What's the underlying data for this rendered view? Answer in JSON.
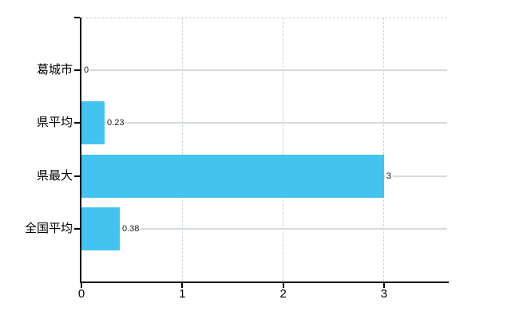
{
  "chart_data": {
    "type": "bar",
    "orientation": "horizontal",
    "title": "",
    "xlabel": "",
    "ylabel": "",
    "categories": [
      "葛城市",
      "県平均",
      "県最大",
      "全国平均"
    ],
    "values": [
      0,
      0.23,
      3,
      0.38
    ],
    "value_labels": [
      "0",
      "0.23",
      "3",
      "0.38"
    ],
    "x_ticks": [
      0,
      1,
      2,
      3
    ],
    "x_tick_labels": [
      "0",
      "1",
      "2",
      "3"
    ],
    "xlim": [
      0,
      3.626
    ],
    "grid": "on",
    "legend": "none",
    "colors": {
      "bar": "#42C3F0",
      "axis": "#000000",
      "horizontal_grid": "#d4dcd4",
      "vertical_grid": "#c9d3d3",
      "top_border": "#d0d0d0",
      "background": "#ffffff",
      "label_text": "#000000",
      "value_text": "#1a1a1a"
    }
  }
}
